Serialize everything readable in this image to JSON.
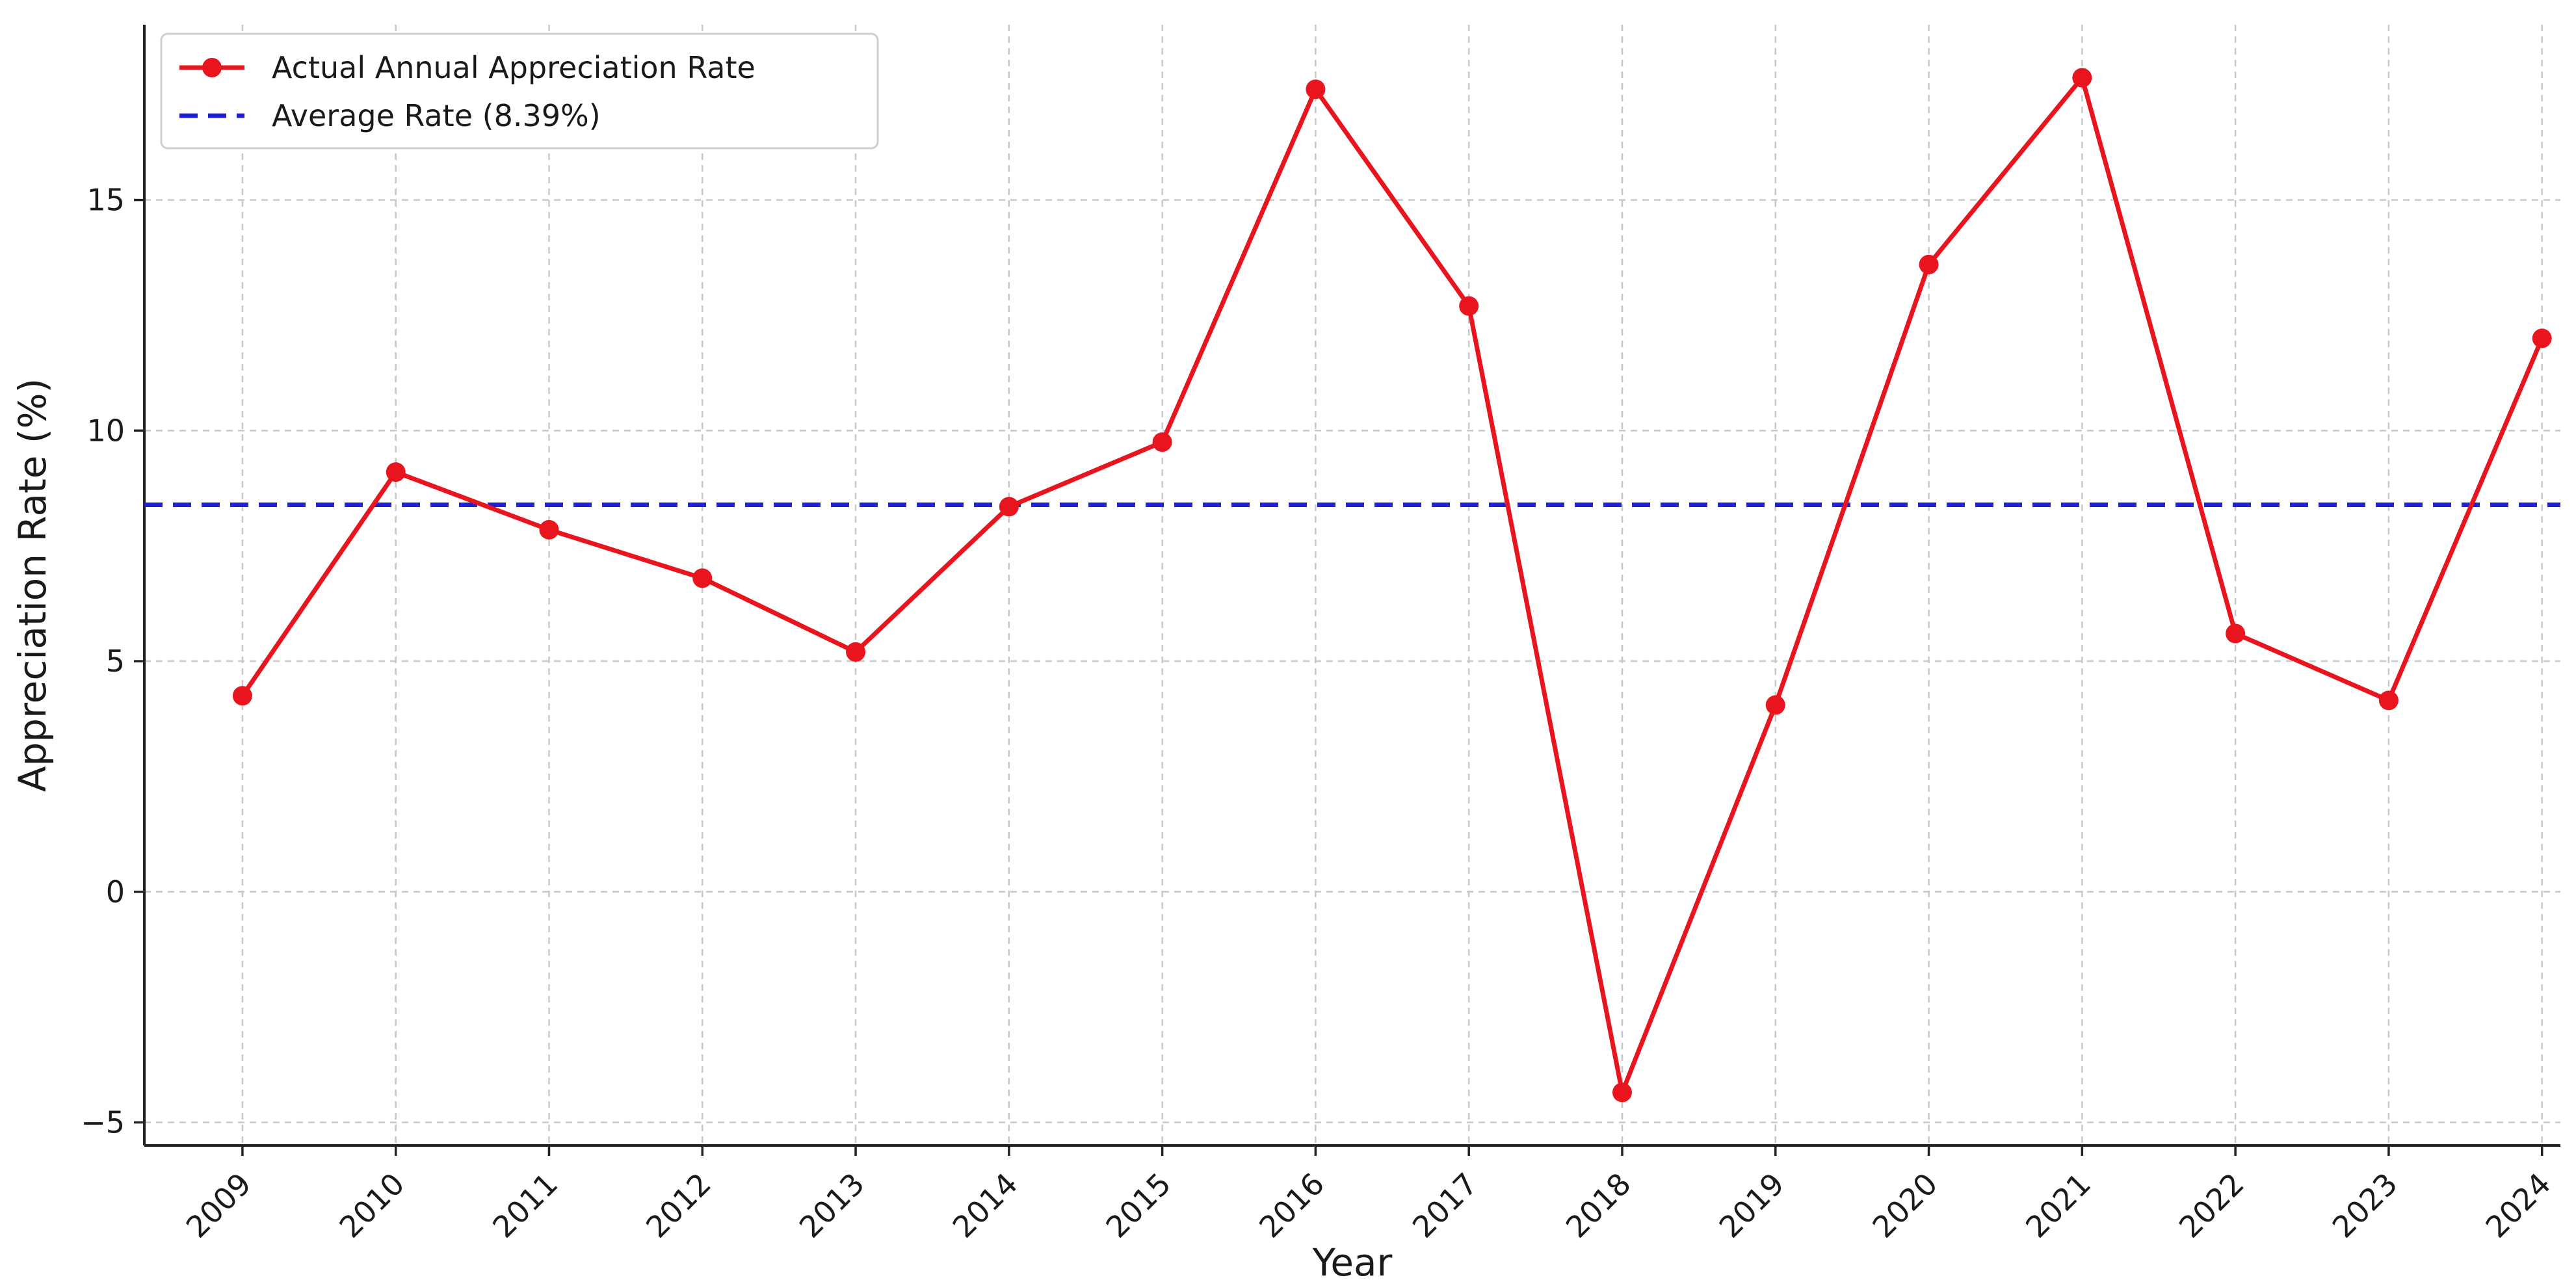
{
  "chart_data": {
    "type": "line",
    "x": [
      "2009",
      "2010",
      "2011",
      "2012",
      "2013",
      "2014",
      "2015",
      "2016",
      "2017",
      "2018",
      "2019",
      "2020",
      "2021",
      "2022",
      "2023",
      "2024"
    ],
    "series": [
      {
        "name": "Actual Annual Appreciation Rate",
        "values": [
          4.25,
          9.1,
          7.85,
          6.8,
          5.2,
          8.35,
          9.75,
          17.4,
          12.7,
          -4.35,
          4.05,
          13.6,
          17.65,
          5.6,
          4.15,
          12.0
        ],
        "color": "#e8141e",
        "style": "solid-with-markers"
      }
    ],
    "reference_lines": [
      {
        "name": "Average Rate (8.39%)",
        "value": 8.39,
        "color": "#1f1fd6",
        "style": "dashed"
      }
    ],
    "xlabel": "Year",
    "ylabel": "Appreciation Rate (%)",
    "ylim": [
      -5.5,
      18.8
    ],
    "yticks": [
      -5,
      0,
      5,
      10,
      15
    ],
    "grid": true,
    "legend_position": "top-left"
  }
}
